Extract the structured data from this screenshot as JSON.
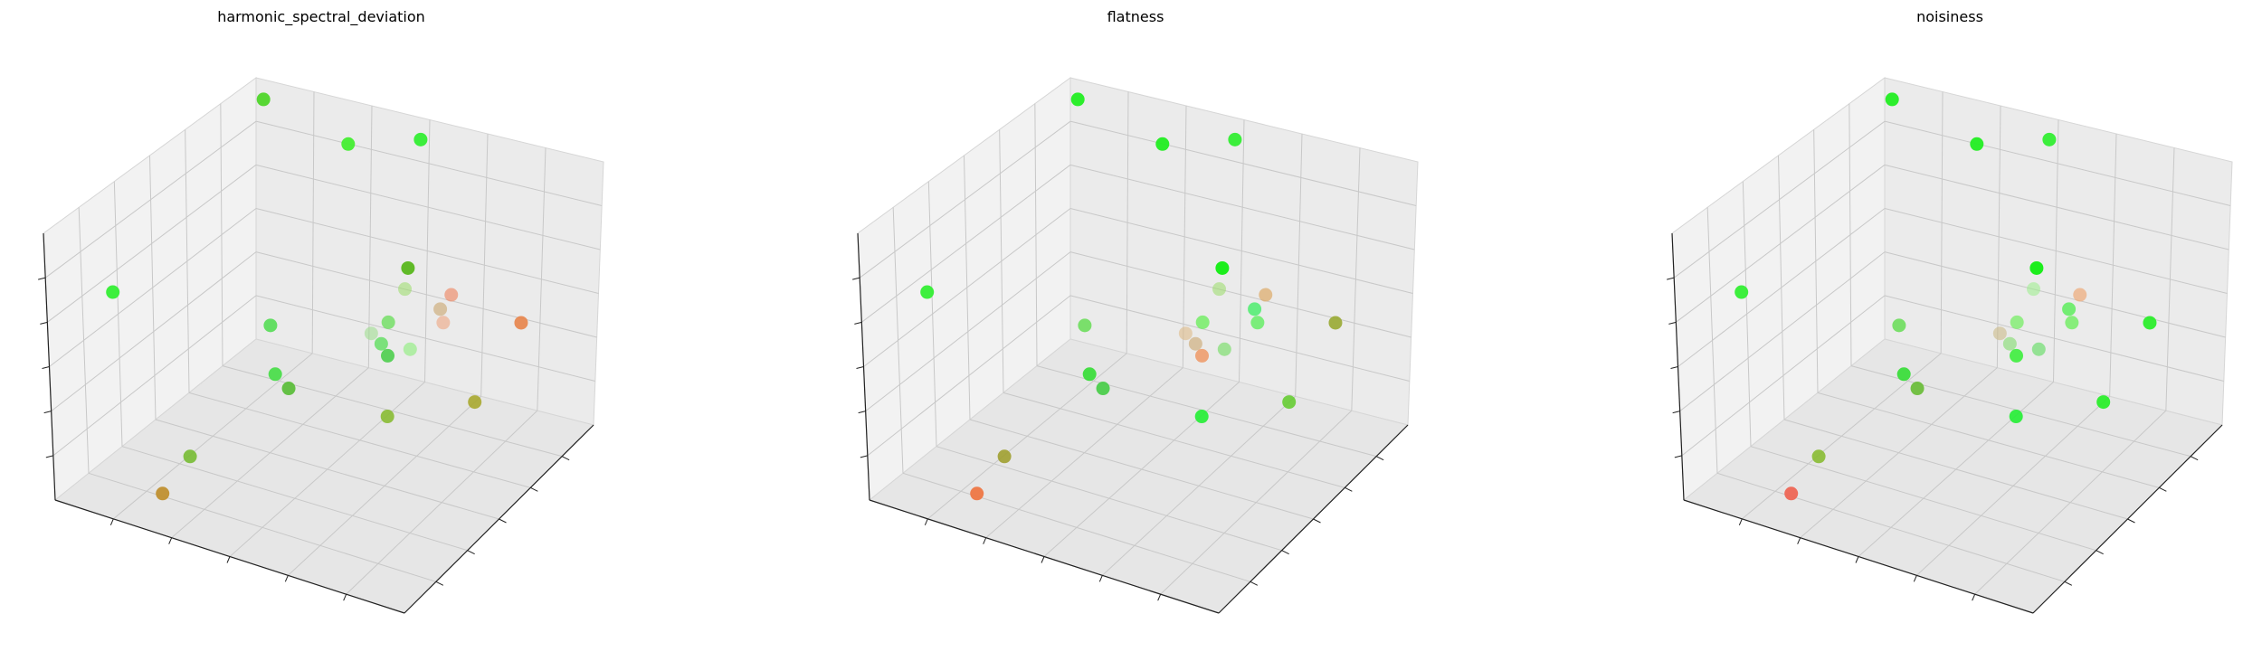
{
  "figure": {
    "background": "#ffffff",
    "pane_colors": [
      "#f2f2f2",
      "#ebebeb",
      "#e6e6e6"
    ],
    "grid_color": "#c8c8c8"
  },
  "chart_data": [
    {
      "type": "scatter",
      "projection": "3d",
      "title": "harmonic_spectral_deviation",
      "xlabel": "",
      "ylabel": "",
      "zlabel": "",
      "tick_labels_visible": false,
      "grid": true,
      "points": [
        {
          "x": 0.05,
          "y": 0.95,
          "z": 0.95,
          "color": "#4fd62a",
          "alpha": 0.95
        },
        {
          "x": 0.35,
          "y": 0.85,
          "z": 0.97,
          "color": "#44ee33",
          "alpha": 0.95
        },
        {
          "x": 0.5,
          "y": 0.95,
          "z": 0.99,
          "color": "#33ee33",
          "alpha": 0.95
        },
        {
          "x": 0.05,
          "y": 0.2,
          "z": 0.68,
          "color": "#33ee33",
          "alpha": 0.95
        },
        {
          "x": 0.55,
          "y": 0.8,
          "z": 0.62,
          "color": "#58b71c",
          "alpha": 0.95
        },
        {
          "x": 0.57,
          "y": 0.75,
          "z": 0.58,
          "color": "#99dd66",
          "alpha": 0.55
        },
        {
          "x": 0.72,
          "y": 0.72,
          "z": 0.64,
          "color": "#ee8866",
          "alpha": 0.65
        },
        {
          "x": 0.7,
          "y": 0.7,
          "z": 0.59,
          "color": "#ccaa77",
          "alpha": 0.65
        },
        {
          "x": 0.72,
          "y": 0.68,
          "z": 0.56,
          "color": "#eeaa88",
          "alpha": 0.65
        },
        {
          "x": 0.58,
          "y": 0.65,
          "z": 0.52,
          "color": "#66dd55",
          "alpha": 0.75
        },
        {
          "x": 0.56,
          "y": 0.6,
          "z": 0.5,
          "color": "#99dd88",
          "alpha": 0.55
        },
        {
          "x": 0.6,
          "y": 0.58,
          "z": 0.49,
          "color": "#55dd55",
          "alpha": 0.75
        },
        {
          "x": 0.7,
          "y": 0.55,
          "z": 0.53,
          "color": "#88ee77",
          "alpha": 0.6
        },
        {
          "x": 0.63,
          "y": 0.56,
          "z": 0.47,
          "color": "#44cc44",
          "alpha": 0.85
        },
        {
          "x": 0.92,
          "y": 0.72,
          "z": 0.62,
          "color": "#e8844a",
          "alpha": 0.9
        },
        {
          "x": 1.0,
          "y": 0.35,
          "z": 0.58,
          "color": "#a8a830",
          "alpha": 0.9
        },
        {
          "x": 0.3,
          "y": 0.55,
          "z": 0.45,
          "color": "#55dd55",
          "alpha": 0.9
        },
        {
          "x": 0.4,
          "y": 0.4,
          "z": 0.4,
          "color": "#44dd44",
          "alpha": 0.9
        },
        {
          "x": 0.45,
          "y": 0.38,
          "z": 0.38,
          "color": "#55bb33",
          "alpha": 0.9
        },
        {
          "x": 0.75,
          "y": 0.35,
          "z": 0.42,
          "color": "#88bb33",
          "alpha": 0.9
        },
        {
          "x": 0.3,
          "y": 0.15,
          "z": 0.2,
          "color": "#77bb33",
          "alpha": 0.9
        },
        {
          "x": 0.25,
          "y": 0.1,
          "z": 0.07,
          "color": "#c09030",
          "alpha": 0.95
        }
      ]
    },
    {
      "type": "scatter",
      "projection": "3d",
      "title": "flatness",
      "xlabel": "",
      "ylabel": "",
      "zlabel": "",
      "tick_labels_visible": false,
      "grid": true,
      "points": [
        {
          "x": 0.05,
          "y": 0.95,
          "z": 0.95,
          "color": "#22ee22",
          "alpha": 0.95
        },
        {
          "x": 0.35,
          "y": 0.85,
          "z": 0.97,
          "color": "#22ee22",
          "alpha": 0.95
        },
        {
          "x": 0.5,
          "y": 0.95,
          "z": 0.99,
          "color": "#33ee33",
          "alpha": 0.95
        },
        {
          "x": 0.05,
          "y": 0.2,
          "z": 0.68,
          "color": "#33ee33",
          "alpha": 0.95
        },
        {
          "x": 0.55,
          "y": 0.8,
          "z": 0.62,
          "color": "#11ee11",
          "alpha": 0.95
        },
        {
          "x": 0.57,
          "y": 0.75,
          "z": 0.58,
          "color": "#99dd66",
          "alpha": 0.55
        },
        {
          "x": 0.72,
          "y": 0.72,
          "z": 0.64,
          "color": "#ddaa66",
          "alpha": 0.7
        },
        {
          "x": 0.7,
          "y": 0.7,
          "z": 0.59,
          "color": "#44ee66",
          "alpha": 0.8
        },
        {
          "x": 0.72,
          "y": 0.68,
          "z": 0.56,
          "color": "#55ee55",
          "alpha": 0.75
        },
        {
          "x": 0.58,
          "y": 0.65,
          "z": 0.52,
          "color": "#66ee55",
          "alpha": 0.75
        },
        {
          "x": 0.56,
          "y": 0.6,
          "z": 0.5,
          "color": "#ddbb88",
          "alpha": 0.6
        },
        {
          "x": 0.6,
          "y": 0.58,
          "z": 0.49,
          "color": "#ccaa77",
          "alpha": 0.65
        },
        {
          "x": 0.7,
          "y": 0.55,
          "z": 0.53,
          "color": "#77dd66",
          "alpha": 0.65
        },
        {
          "x": 0.63,
          "y": 0.56,
          "z": 0.47,
          "color": "#ee9966",
          "alpha": 0.85
        },
        {
          "x": 0.92,
          "y": 0.72,
          "z": 0.62,
          "color": "#99aa33",
          "alpha": 0.9
        },
        {
          "x": 1.0,
          "y": 0.35,
          "z": 0.58,
          "color": "#66cc33",
          "alpha": 0.9
        },
        {
          "x": 0.3,
          "y": 0.55,
          "z": 0.45,
          "color": "#66dd55",
          "alpha": 0.85
        },
        {
          "x": 0.4,
          "y": 0.4,
          "z": 0.4,
          "color": "#33dd33",
          "alpha": 0.9
        },
        {
          "x": 0.45,
          "y": 0.38,
          "z": 0.38,
          "color": "#44cc44",
          "alpha": 0.9
        },
        {
          "x": 0.75,
          "y": 0.35,
          "z": 0.42,
          "color": "#22ee33",
          "alpha": 0.9
        },
        {
          "x": 0.3,
          "y": 0.15,
          "z": 0.2,
          "color": "#a0a030",
          "alpha": 0.9
        },
        {
          "x": 0.25,
          "y": 0.1,
          "z": 0.07,
          "color": "#ee7744",
          "alpha": 0.95
        }
      ]
    },
    {
      "type": "scatter",
      "projection": "3d",
      "title": "noisiness",
      "xlabel": "",
      "ylabel": "",
      "zlabel": "",
      "tick_labels_visible": false,
      "grid": true,
      "points": [
        {
          "x": 0.05,
          "y": 0.95,
          "z": 0.95,
          "color": "#22ee22",
          "alpha": 0.95
        },
        {
          "x": 0.35,
          "y": 0.85,
          "z": 0.97,
          "color": "#22ee22",
          "alpha": 0.95
        },
        {
          "x": 0.5,
          "y": 0.95,
          "z": 0.99,
          "color": "#33ee33",
          "alpha": 0.95
        },
        {
          "x": 0.05,
          "y": 0.2,
          "z": 0.68,
          "color": "#33ee33",
          "alpha": 0.95
        },
        {
          "x": 0.55,
          "y": 0.8,
          "z": 0.62,
          "color": "#11ee11",
          "alpha": 0.95
        },
        {
          "x": 0.57,
          "y": 0.75,
          "z": 0.58,
          "color": "#99ee88",
          "alpha": 0.55
        },
        {
          "x": 0.72,
          "y": 0.72,
          "z": 0.64,
          "color": "#eeaa77",
          "alpha": 0.7
        },
        {
          "x": 0.7,
          "y": 0.7,
          "z": 0.59,
          "color": "#55ee55",
          "alpha": 0.8
        },
        {
          "x": 0.72,
          "y": 0.68,
          "z": 0.56,
          "color": "#66ee55",
          "alpha": 0.75
        },
        {
          "x": 0.58,
          "y": 0.65,
          "z": 0.52,
          "color": "#77ee66",
          "alpha": 0.75
        },
        {
          "x": 0.56,
          "y": 0.6,
          "z": 0.5,
          "color": "#ccbb88",
          "alpha": 0.6
        },
        {
          "x": 0.6,
          "y": 0.58,
          "z": 0.49,
          "color": "#88dd77",
          "alpha": 0.65
        },
        {
          "x": 0.7,
          "y": 0.55,
          "z": 0.53,
          "color": "#66dd66",
          "alpha": 0.65
        },
        {
          "x": 0.63,
          "y": 0.56,
          "z": 0.47,
          "color": "#33ee33",
          "alpha": 0.85
        },
        {
          "x": 0.92,
          "y": 0.72,
          "z": 0.62,
          "color": "#22ee22",
          "alpha": 0.9
        },
        {
          "x": 1.0,
          "y": 0.35,
          "z": 0.58,
          "color": "#22ee22",
          "alpha": 0.9
        },
        {
          "x": 0.3,
          "y": 0.55,
          "z": 0.45,
          "color": "#66dd55",
          "alpha": 0.85
        },
        {
          "x": 0.4,
          "y": 0.4,
          "z": 0.4,
          "color": "#33dd33",
          "alpha": 0.9
        },
        {
          "x": 0.45,
          "y": 0.38,
          "z": 0.38,
          "color": "#66bb33",
          "alpha": 0.9
        },
        {
          "x": 0.75,
          "y": 0.35,
          "z": 0.42,
          "color": "#22ee33",
          "alpha": 0.9
        },
        {
          "x": 0.3,
          "y": 0.15,
          "z": 0.2,
          "color": "#88bb33",
          "alpha": 0.9
        },
        {
          "x": 0.25,
          "y": 0.1,
          "z": 0.07,
          "color": "#ee6655",
          "alpha": 0.95
        }
      ]
    }
  ]
}
